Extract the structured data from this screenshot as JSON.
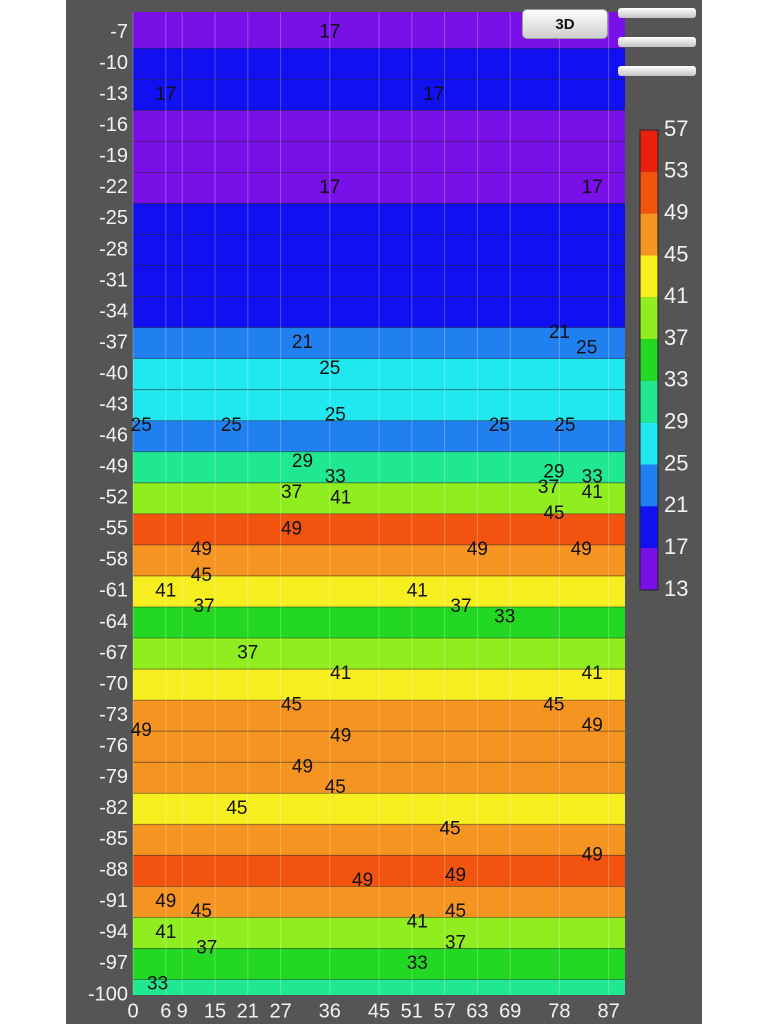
{
  "chart_data": {
    "type": "contour",
    "ylim": [
      -5,
      -100
    ],
    "yticks": [
      -7,
      -10,
      -13,
      -16,
      -19,
      -22,
      -25,
      -28,
      -31,
      -34,
      -37,
      -40,
      -43,
      -46,
      -49,
      -52,
      -55,
      -58,
      -61,
      -64,
      -67,
      -70,
      -73,
      -76,
      -79,
      -82,
      -85,
      -88,
      -91,
      -94,
      -97,
      -100
    ],
    "xlim": [
      0,
      90
    ],
    "xticks": [
      0,
      6,
      9,
      15,
      21,
      27,
      36,
      45,
      51,
      57,
      63,
      69,
      78,
      87
    ],
    "profile": {
      "depth": [
        -7,
        -10,
        -13,
        -16,
        -19,
        -22,
        -25,
        -28,
        -31,
        -34,
        -37,
        -40,
        -43,
        -46,
        -49,
        -52,
        -55,
        -58,
        -61,
        -64,
        -67,
        -70,
        -73,
        -76,
        -79,
        -82,
        -85,
        -88,
        -91,
        -94,
        -97,
        -100
      ],
      "values": [
        15,
        19,
        18,
        15,
        15,
        16,
        19,
        19,
        19,
        19,
        22,
        27,
        25,
        24,
        30,
        38,
        50,
        47,
        42,
        34,
        38,
        42,
        47,
        48,
        46,
        44,
        46,
        50,
        47,
        40,
        33,
        31
      ]
    },
    "colorbar_ticks": [
      57,
      53,
      49,
      45,
      41,
      37,
      33,
      29,
      25,
      21,
      17,
      13
    ],
    "colors": [
      "#e8200c",
      "#f25410",
      "#f59420",
      "#f7ee20",
      "#90ee20",
      "#22d822",
      "#20e890",
      "#20e8f0",
      "#2080f0",
      "#1010f0",
      "#7a10e8"
    ],
    "contour_labels": [
      {
        "x": 36,
        "y": -7,
        "value": 17
      },
      {
        "x": 6,
        "y": -13,
        "value": 17
      },
      {
        "x": 55,
        "y": -13,
        "value": 17
      },
      {
        "x": 36,
        "y": -22,
        "value": 17
      },
      {
        "x": 84,
        "y": -22,
        "value": 17
      },
      {
        "x": 31,
        "y": -37,
        "value": 21
      },
      {
        "x": 78,
        "y": -36,
        "value": 21
      },
      {
        "x": 36,
        "y": -39.5,
        "value": 25
      },
      {
        "x": 83,
        "y": -37.5,
        "value": 25
      },
      {
        "x": 1.5,
        "y": -45,
        "value": 25
      },
      {
        "x": 18,
        "y": -45,
        "value": 25
      },
      {
        "x": 37,
        "y": -44,
        "value": 25
      },
      {
        "x": 67,
        "y": -45,
        "value": 25
      },
      {
        "x": 79,
        "y": -45,
        "value": 25
      },
      {
        "x": 31,
        "y": -48.5,
        "value": 29
      },
      {
        "x": 77,
        "y": -49.5,
        "value": 29
      },
      {
        "x": 37,
        "y": -50,
        "value": 33
      },
      {
        "x": 84,
        "y": -50,
        "value": 33
      },
      {
        "x": 29,
        "y": -51.5,
        "value": 37
      },
      {
        "x": 76,
        "y": -51,
        "value": 37
      },
      {
        "x": 38,
        "y": -52,
        "value": 41
      },
      {
        "x": 84,
        "y": -51.5,
        "value": 41
      },
      {
        "x": 77,
        "y": -53.5,
        "value": 45
      },
      {
        "x": 29,
        "y": -55,
        "value": 49
      },
      {
        "x": 12.5,
        "y": -57,
        "value": 49
      },
      {
        "x": 63,
        "y": -57,
        "value": 49
      },
      {
        "x": 82,
        "y": -57,
        "value": 49
      },
      {
        "x": 12.5,
        "y": -59.5,
        "value": 45
      },
      {
        "x": 6,
        "y": -61,
        "value": 41
      },
      {
        "x": 52,
        "y": -61,
        "value": 41
      },
      {
        "x": 13,
        "y": -62.5,
        "value": 37
      },
      {
        "x": 60,
        "y": -62.5,
        "value": 37
      },
      {
        "x": 68,
        "y": -63.5,
        "value": 33
      },
      {
        "x": 21,
        "y": -67,
        "value": 37
      },
      {
        "x": 38,
        "y": -69,
        "value": 41
      },
      {
        "x": 84,
        "y": -69,
        "value": 41
      },
      {
        "x": 29,
        "y": -72,
        "value": 45
      },
      {
        "x": 77,
        "y": -72,
        "value": 45
      },
      {
        "x": 84,
        "y": -74,
        "value": 49
      },
      {
        "x": 1.5,
        "y": -74.5,
        "value": 49
      },
      {
        "x": 38,
        "y": -75,
        "value": 49
      },
      {
        "x": 31,
        "y": -78,
        "value": 49
      },
      {
        "x": 37,
        "y": -80,
        "value": 45
      },
      {
        "x": 19,
        "y": -82,
        "value": 45
      },
      {
        "x": 58,
        "y": -84,
        "value": 45
      },
      {
        "x": 84,
        "y": -86.5,
        "value": 49
      },
      {
        "x": 59,
        "y": -88.5,
        "value": 49
      },
      {
        "x": 42,
        "y": -89,
        "value": 49
      },
      {
        "x": 6,
        "y": -91,
        "value": 49
      },
      {
        "x": 12.5,
        "y": -92,
        "value": 45
      },
      {
        "x": 59,
        "y": -92,
        "value": 45
      },
      {
        "x": 6,
        "y": -94,
        "value": 41
      },
      {
        "x": 52,
        "y": -93,
        "value": 41
      },
      {
        "x": 13.5,
        "y": -95.5,
        "value": 37
      },
      {
        "x": 59,
        "y": -95,
        "value": 37
      },
      {
        "x": 52,
        "y": -97,
        "value": 33
      },
      {
        "x": 4.5,
        "y": -99,
        "value": 33
      }
    ]
  },
  "buttons": {
    "view_3d": "3D"
  }
}
